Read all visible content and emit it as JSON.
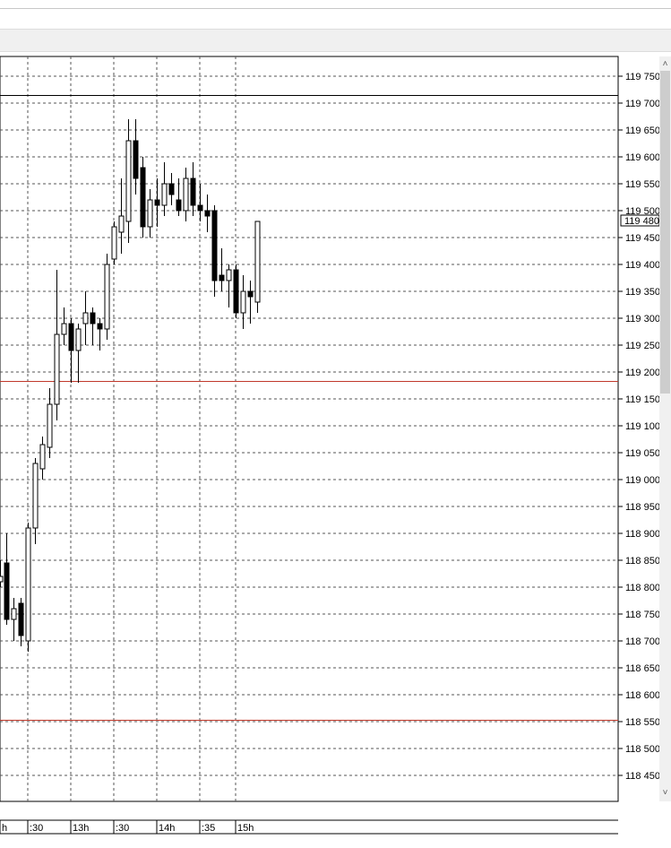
{
  "chart_data": {
    "type": "candlestick",
    "y_ticks": [
      "119 750",
      "119 700",
      "119 650",
      "119 600",
      "119 550",
      "119 500",
      "119 450",
      "119 400",
      "119 350",
      "119 300",
      "119 250",
      "119 200",
      "119 150",
      "119 100",
      "119 050",
      "119 000",
      "118 950",
      "118 900",
      "118 850",
      "118 800",
      "118 750",
      "118 700",
      "118 650",
      "118 600",
      "118 550",
      "118 500",
      "118 450"
    ],
    "current_price_label": "119 480",
    "x_ticks": [
      "h",
      ":30",
      "13h",
      ":30",
      "14h",
      ":35",
      "15h"
    ],
    "ylim": [
      118400,
      119780
    ],
    "hlines": [
      {
        "value": 119715,
        "color": "#000000"
      },
      {
        "value": 119183,
        "color": "#c0392b"
      },
      {
        "value": 118553,
        "color": "#c0392b"
      }
    ],
    "candles": [
      {
        "x": 0,
        "o": 118810,
        "h": 118850,
        "l": 118800,
        "c": 118820
      },
      {
        "x": 7,
        "o": 118845,
        "h": 118900,
        "l": 118730,
        "c": 118740
      },
      {
        "x": 15,
        "o": 118740,
        "h": 118780,
        "l": 118700,
        "c": 118760
      },
      {
        "x": 23,
        "o": 118770,
        "h": 118780,
        "l": 118690,
        "c": 118710
      },
      {
        "x": 31,
        "o": 118700,
        "h": 118920,
        "l": 118680,
        "c": 118910
      },
      {
        "x": 39,
        "o": 118910,
        "h": 119040,
        "l": 118880,
        "c": 119030
      },
      {
        "x": 47,
        "o": 119020,
        "h": 119080,
        "l": 119000,
        "c": 119065
      },
      {
        "x": 55,
        "o": 119060,
        "h": 119170,
        "l": 119040,
        "c": 119140
      },
      {
        "x": 63,
        "o": 119140,
        "h": 119390,
        "l": 119110,
        "c": 119270
      },
      {
        "x": 71,
        "o": 119270,
        "h": 119320,
        "l": 119250,
        "c": 119290
      },
      {
        "x": 79,
        "o": 119290,
        "h": 119300,
        "l": 119180,
        "c": 119240
      },
      {
        "x": 87,
        "o": 119240,
        "h": 119290,
        "l": 119180,
        "c": 119280
      },
      {
        "x": 95,
        "o": 119290,
        "h": 119350,
        "l": 119250,
        "c": 119310
      },
      {
        "x": 103,
        "o": 119310,
        "h": 119320,
        "l": 119250,
        "c": 119290
      },
      {
        "x": 111,
        "o": 119290,
        "h": 119300,
        "l": 119240,
        "c": 119280
      },
      {
        "x": 119,
        "o": 119280,
        "h": 119420,
        "l": 119260,
        "c": 119400
      },
      {
        "x": 127,
        "o": 119410,
        "h": 119480,
        "l": 119400,
        "c": 119470
      },
      {
        "x": 135,
        "o": 119460,
        "h": 119560,
        "l": 119420,
        "c": 119490
      },
      {
        "x": 143,
        "o": 119480,
        "h": 119670,
        "l": 119440,
        "c": 119630
      },
      {
        "x": 151,
        "o": 119630,
        "h": 119670,
        "l": 119530,
        "c": 119560
      },
      {
        "x": 159,
        "o": 119580,
        "h": 119600,
        "l": 119450,
        "c": 119470
      },
      {
        "x": 167,
        "o": 119470,
        "h": 119540,
        "l": 119450,
        "c": 119520
      },
      {
        "x": 175,
        "o": 119520,
        "h": 119560,
        "l": 119470,
        "c": 119510
      },
      {
        "x": 183,
        "o": 119510,
        "h": 119590,
        "l": 119490,
        "c": 119550
      },
      {
        "x": 191,
        "o": 119550,
        "h": 119570,
        "l": 119510,
        "c": 119530
      },
      {
        "x": 199,
        "o": 119520,
        "h": 119560,
        "l": 119490,
        "c": 119500
      },
      {
        "x": 207,
        "o": 119500,
        "h": 119580,
        "l": 119480,
        "c": 119560
      },
      {
        "x": 215,
        "o": 119560,
        "h": 119590,
        "l": 119490,
        "c": 119510
      },
      {
        "x": 223,
        "o": 119510,
        "h": 119550,
        "l": 119480,
        "c": 119500
      },
      {
        "x": 231,
        "o": 119500,
        "h": 119530,
        "l": 119460,
        "c": 119490
      },
      {
        "x": 239,
        "o": 119500,
        "h": 119510,
        "l": 119340,
        "c": 119370
      },
      {
        "x": 247,
        "o": 119380,
        "h": 119430,
        "l": 119350,
        "c": 119370
      },
      {
        "x": 255,
        "o": 119370,
        "h": 119400,
        "l": 119320,
        "c": 119390
      },
      {
        "x": 263,
        "o": 119390,
        "h": 119400,
        "l": 119300,
        "c": 119310
      },
      {
        "x": 271,
        "o": 119310,
        "h": 119380,
        "l": 119280,
        "c": 119350
      },
      {
        "x": 279,
        "o": 119350,
        "h": 119370,
        "l": 119290,
        "c": 119340
      },
      {
        "x": 287,
        "o": 119330,
        "h": 119480,
        "l": 119310,
        "c": 119480
      }
    ]
  }
}
